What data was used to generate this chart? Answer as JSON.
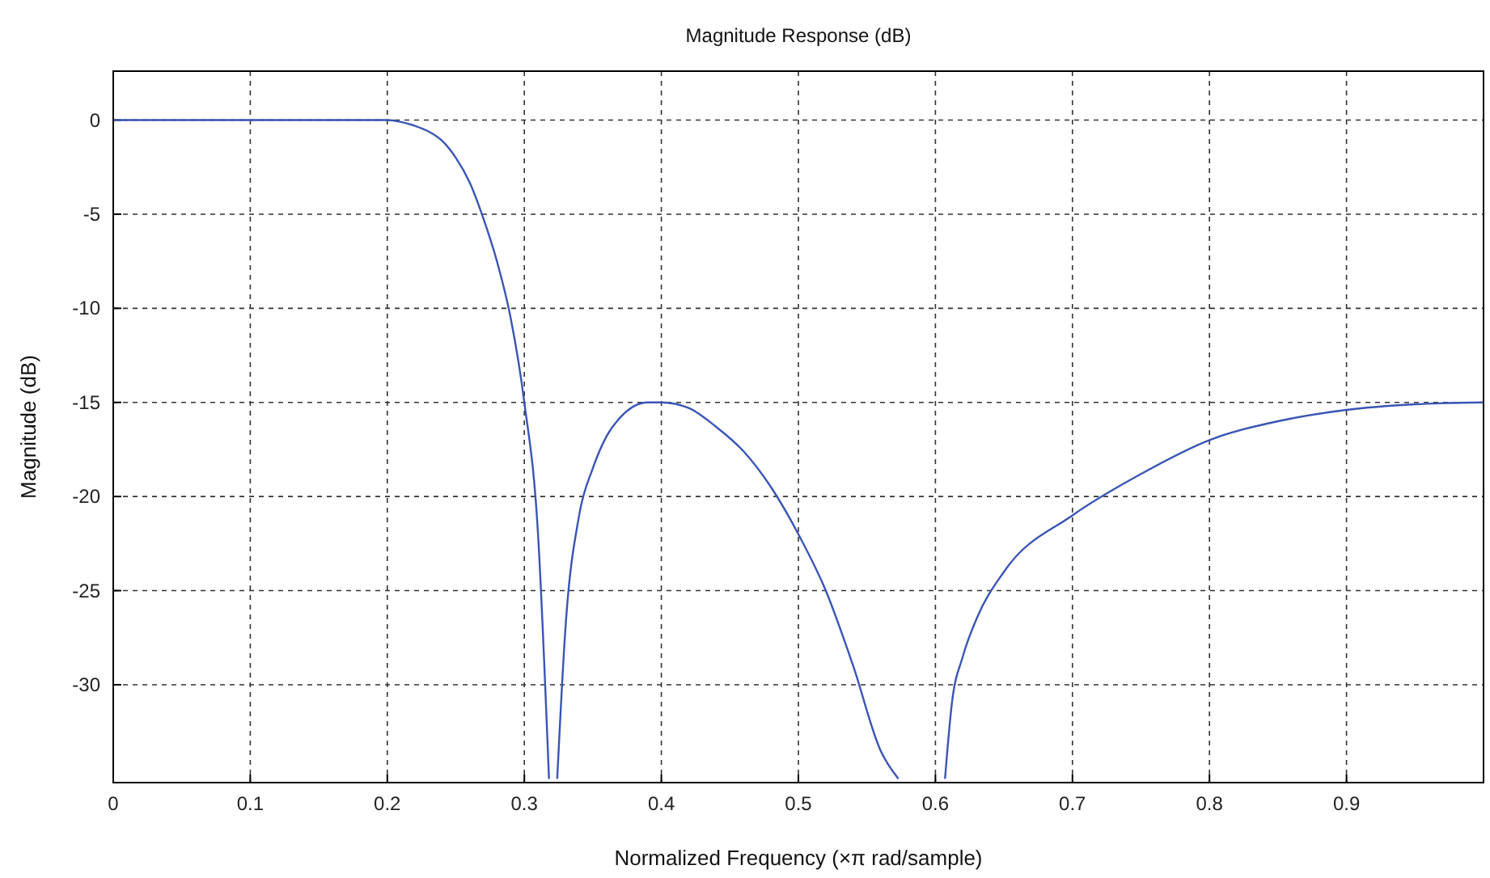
{
  "chart_data": {
    "type": "line",
    "title": "Magnitude Response (dB)",
    "xlabel": "Normalized Frequency (×π rad/sample)",
    "ylabel": "Magnitude (dB)",
    "xlim": [
      0,
      1
    ],
    "ylim": [
      -35.2,
      2.6
    ],
    "xticks": [
      0,
      0.1,
      0.2,
      0.3,
      0.4,
      0.5,
      0.6,
      0.7,
      0.8,
      0.9
    ],
    "yticks": [
      0,
      -5,
      -10,
      -15,
      -20,
      -25,
      -30
    ],
    "grid": true,
    "marker": "none",
    "line_style": "solid",
    "series": [
      {
        "color": "#3a55b4",
        "x": [
          0,
          0.1,
          0.2,
          0.21,
          0.22,
          0.23,
          0.24,
          0.25,
          0.26,
          0.27,
          0.28,
          0.29,
          0.3,
          0.31,
          0.318,
          0.32,
          0.324,
          0.33,
          0.34,
          0.35,
          0.36,
          0.37,
          0.38,
          0.39,
          0.4,
          0.42,
          0.44,
          0.46,
          0.48,
          0.5,
          0.52,
          0.54,
          0.56,
          0.573,
          0.59,
          0.607,
          0.612,
          0.62,
          0.63,
          0.65,
          0.7,
          0.75,
          0.8,
          0.85,
          0.9,
          0.95,
          1.0
        ],
        "values": [
          0,
          0,
          0,
          -0.1,
          -0.3,
          -0.6,
          -1.1,
          -2,
          -3.3,
          -5.2,
          -7.5,
          -10.5,
          -15,
          -22,
          -35,
          null,
          -35,
          -27,
          -21,
          -18.5,
          -16.8,
          -15.8,
          -15.2,
          -15,
          -15,
          -15.3,
          -16.3,
          -17.6,
          -19.5,
          -22,
          -25,
          -29,
          -33.5,
          -35,
          null,
          -35,
          -31,
          -28.5,
          -26.5,
          -24,
          -21,
          -18.8,
          -17,
          -16,
          -15.4,
          -15.1,
          -15
        ]
      }
    ]
  }
}
